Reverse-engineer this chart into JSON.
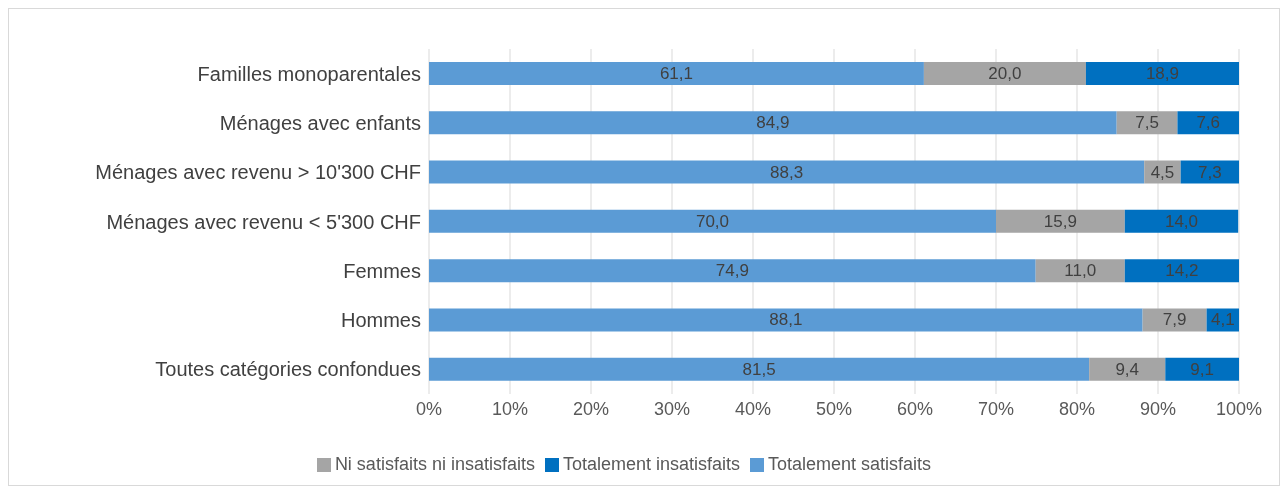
{
  "chart_data": {
    "type": "bar",
    "orientation": "horizontal",
    "stacked": true,
    "categories": [
      "Familles monoparentales",
      "Ménages avec enfants",
      "Ménages avec revenu > 10'300 CHF",
      "Ménages avec revenu < 5'300 CHF",
      "Femmes",
      "Hommes",
      "Toutes catégories confondues"
    ],
    "series": [
      {
        "name": "Totalement satisfaits",
        "color": "#5b9bd5",
        "values": [
          61.1,
          84.9,
          88.3,
          70.0,
          74.9,
          88.1,
          81.5
        ],
        "value_labels": [
          "61,1",
          "84,9",
          "88,3",
          "70,0",
          "74,9",
          "88,1",
          "81,5"
        ]
      },
      {
        "name": "Ni satisfaits ni insatisfaits",
        "color": "#a5a5a5",
        "values": [
          20.0,
          7.5,
          4.5,
          15.9,
          11.0,
          7.9,
          9.4
        ],
        "value_labels": [
          "20,0",
          "7,5",
          "4,5",
          "15,9",
          "11,0",
          "7,9",
          "9,4"
        ]
      },
      {
        "name": "Totalement insatisfaits",
        "color": "#0070c0",
        "values": [
          18.9,
          7.6,
          7.3,
          14.0,
          14.2,
          4.1,
          9.1
        ],
        "value_labels": [
          "18,9",
          "7,6",
          "7,3",
          "14,0",
          "14,2",
          "4,1",
          "9,1"
        ]
      }
    ],
    "xlim": [
      0,
      100
    ],
    "xticks": [
      {
        "value": 0,
        "label": "0%"
      },
      {
        "value": 10,
        "label": "10%"
      },
      {
        "value": 20,
        "label": "20%"
      },
      {
        "value": 30,
        "label": "30%"
      },
      {
        "value": 40,
        "label": "40%"
      },
      {
        "value": 50,
        "label": "50%"
      },
      {
        "value": 60,
        "label": "60%"
      },
      {
        "value": 70,
        "label": "70%"
      },
      {
        "value": 80,
        "label": "80%"
      },
      {
        "value": 90,
        "label": "90%"
      },
      {
        "value": 100,
        "label": "100%"
      }
    ],
    "grid": "x",
    "legend": "bottom"
  }
}
